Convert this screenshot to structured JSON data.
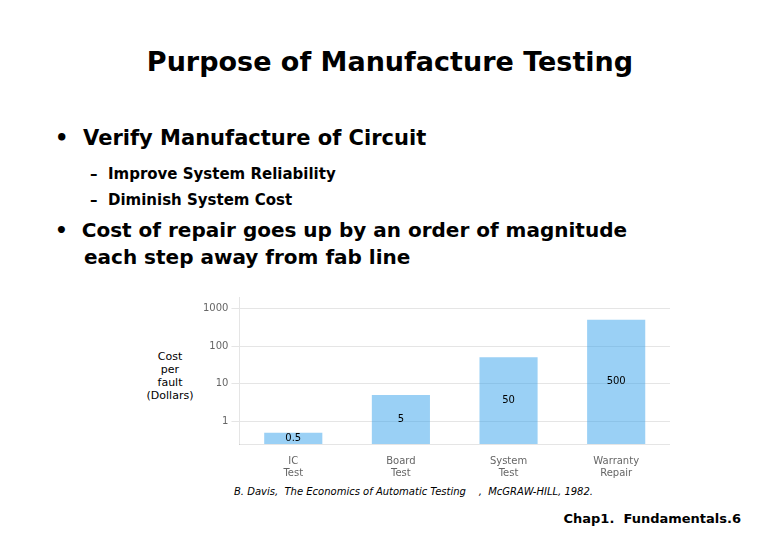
{
  "chart_data": {
    "type": "bar",
    "title": "Purpose of Manufacture Testing",
    "annotations": [
      "•  Verify Manufacture of Circuit",
      "–  Improve System Reliability",
      "–  Diminish System Cost",
      "•  Cost of repair goes up by an order of magnitude",
      "each step away from fab line",
      "B. Davis,  The Economics of Automatic Testing    ,  McGRAW-HILL, 1982.",
      "Chap1.  Fundamentals.6"
    ],
    "categories": [
      "IC\nTest",
      "Board\nTest",
      "System\nTest",
      "Warranty\nRepair"
    ],
    "values": [
      0.5,
      5,
      50,
      500
    ],
    "ylabel": "Cost\nper\nfault\n(Dollars)",
    "log": "y",
    "ylim": [
      0.25,
      2000
    ],
    "yticks": [
      1,
      10,
      100,
      1000
    ],
    "grid": true,
    "data_labels": true
  }
}
